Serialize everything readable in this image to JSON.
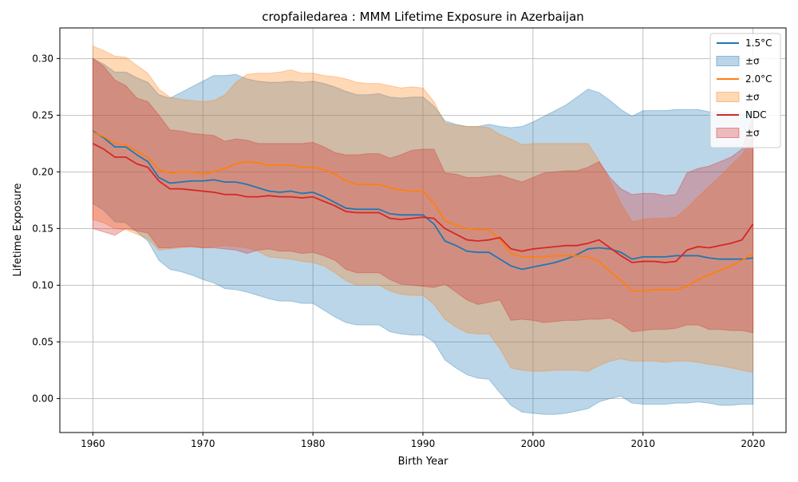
{
  "chart_data": {
    "type": "line",
    "title": "cropfailedarea : MMM Lifetime Exposure in Azerbaijan",
    "xlabel": "Birth Year",
    "ylabel": "Lifetime Exposure",
    "xlim": [
      1957,
      2023
    ],
    "ylim": [
      -0.03,
      0.327
    ],
    "xticks": [
      1960,
      1970,
      1980,
      1990,
      2000,
      2010,
      2020
    ],
    "xtick_labels": [
      "1960",
      "1970",
      "1980",
      "1990",
      "2000",
      "2010",
      "2020"
    ],
    "yticks": [
      0.0,
      0.05,
      0.1,
      0.15,
      0.2,
      0.25,
      0.3
    ],
    "ytick_labels": [
      "0.00",
      "0.05",
      "0.10",
      "0.15",
      "0.20",
      "0.25",
      "0.30"
    ],
    "grid": true,
    "legend_position": "top-right",
    "x": [
      1960,
      1961,
      1962,
      1963,
      1964,
      1965,
      1966,
      1967,
      1968,
      1969,
      1970,
      1971,
      1972,
      1973,
      1974,
      1975,
      1976,
      1977,
      1978,
      1979,
      1980,
      1981,
      1982,
      1983,
      1984,
      1985,
      1986,
      1987,
      1988,
      1989,
      1990,
      1991,
      1992,
      1993,
      1994,
      1995,
      1996,
      1997,
      1998,
      1999,
      2000,
      2001,
      2002,
      2003,
      2004,
      2005,
      2006,
      2007,
      2008,
      2009,
      2010,
      2011,
      2012,
      2013,
      2014,
      2015,
      2016,
      2017,
      2018,
      2019,
      2020
    ],
    "series": [
      {
        "name": "1.5°C",
        "band_label": "±σ",
        "color": "#1f77b4",
        "values": [
          0.236,
          0.23,
          0.222,
          0.222,
          0.215,
          0.209,
          0.195,
          0.19,
          0.191,
          0.192,
          0.192,
          0.193,
          0.191,
          0.191,
          0.189,
          0.186,
          0.183,
          0.182,
          0.183,
          0.181,
          0.182,
          0.178,
          0.173,
          0.168,
          0.167,
          0.167,
          0.167,
          0.163,
          0.162,
          0.162,
          0.162,
          0.154,
          0.139,
          0.135,
          0.13,
          0.129,
          0.129,
          0.123,
          0.117,
          0.114,
          0.116,
          0.118,
          0.12,
          0.123,
          0.127,
          0.132,
          0.133,
          0.132,
          0.129,
          0.123,
          0.125,
          0.125,
          0.125,
          0.126,
          0.126,
          0.126,
          0.124,
          0.123,
          0.123,
          0.123,
          0.124
        ],
        "upper": [
          0.3,
          0.295,
          0.288,
          0.288,
          0.283,
          0.279,
          0.268,
          0.265,
          0.27,
          0.275,
          0.28,
          0.285,
          0.285,
          0.286,
          0.282,
          0.28,
          0.279,
          0.279,
          0.28,
          0.279,
          0.28,
          0.278,
          0.275,
          0.271,
          0.268,
          0.268,
          0.269,
          0.266,
          0.265,
          0.266,
          0.266,
          0.258,
          0.245,
          0.242,
          0.24,
          0.24,
          0.242,
          0.24,
          0.239,
          0.24,
          0.244,
          0.249,
          0.254,
          0.259,
          0.266,
          0.273,
          0.27,
          0.263,
          0.255,
          0.249,
          0.254,
          0.254,
          0.254,
          0.255,
          0.255,
          0.255,
          0.253,
          0.253,
          0.252,
          0.251,
          0.252
        ],
        "lower": [
          0.172,
          0.166,
          0.156,
          0.155,
          0.147,
          0.139,
          0.122,
          0.114,
          0.112,
          0.109,
          0.105,
          0.102,
          0.097,
          0.096,
          0.094,
          0.091,
          0.088,
          0.086,
          0.086,
          0.084,
          0.084,
          0.078,
          0.072,
          0.067,
          0.065,
          0.065,
          0.065,
          0.059,
          0.057,
          0.056,
          0.056,
          0.05,
          0.034,
          0.027,
          0.021,
          0.018,
          0.017,
          0.005,
          -0.006,
          -0.012,
          -0.013,
          -0.014,
          -0.014,
          -0.013,
          -0.011,
          -0.009,
          -0.003,
          0.0,
          0.002,
          -0.004,
          -0.005,
          -0.005,
          -0.005,
          -0.004,
          -0.004,
          -0.003,
          -0.004,
          -0.006,
          -0.006,
          -0.005,
          -0.005
        ]
      },
      {
        "name": "2.0°C",
        "band_label": "±σ",
        "color": "#ff7f0e",
        "values": [
          0.235,
          0.231,
          0.225,
          0.224,
          0.218,
          0.213,
          0.202,
          0.199,
          0.2,
          0.2,
          0.198,
          0.2,
          0.203,
          0.207,
          0.209,
          0.208,
          0.206,
          0.206,
          0.206,
          0.204,
          0.204,
          0.202,
          0.198,
          0.192,
          0.189,
          0.189,
          0.189,
          0.186,
          0.184,
          0.183,
          0.183,
          0.172,
          0.157,
          0.153,
          0.15,
          0.149,
          0.149,
          0.14,
          0.128,
          0.125,
          0.125,
          0.125,
          0.126,
          0.126,
          0.126,
          0.125,
          0.121,
          0.112,
          0.104,
          0.095,
          0.095,
          0.096,
          0.096,
          0.096,
          0.099,
          0.105,
          0.109,
          0.113,
          0.117,
          0.122,
          0.128
        ],
        "upper": [
          0.311,
          0.307,
          0.302,
          0.301,
          0.294,
          0.287,
          0.273,
          0.266,
          0.264,
          0.263,
          0.262,
          0.263,
          0.268,
          0.279,
          0.286,
          0.287,
          0.287,
          0.288,
          0.29,
          0.287,
          0.287,
          0.285,
          0.284,
          0.282,
          0.279,
          0.278,
          0.278,
          0.276,
          0.274,
          0.275,
          0.274,
          0.262,
          0.243,
          0.241,
          0.24,
          0.24,
          0.239,
          0.233,
          0.229,
          0.224,
          0.225,
          0.225,
          0.225,
          0.225,
          0.225,
          0.225,
          0.21,
          0.192,
          0.172,
          0.156,
          0.158,
          0.159,
          0.159,
          0.16,
          0.168,
          0.178,
          0.187,
          0.196,
          0.206,
          0.215,
          0.23
        ],
        "lower": [
          0.158,
          0.155,
          0.15,
          0.149,
          0.145,
          0.141,
          0.131,
          0.132,
          0.133,
          0.134,
          0.133,
          0.134,
          0.135,
          0.134,
          0.133,
          0.13,
          0.125,
          0.124,
          0.123,
          0.121,
          0.12,
          0.117,
          0.111,
          0.104,
          0.1,
          0.1,
          0.1,
          0.095,
          0.092,
          0.091,
          0.091,
          0.083,
          0.07,
          0.063,
          0.058,
          0.057,
          0.057,
          0.044,
          0.027,
          0.025,
          0.024,
          0.024,
          0.025,
          0.025,
          0.025,
          0.024,
          0.029,
          0.033,
          0.035,
          0.033,
          0.033,
          0.033,
          0.032,
          0.033,
          0.033,
          0.032,
          0.03,
          0.029,
          0.027,
          0.025,
          0.023
        ]
      },
      {
        "name": "NDC",
        "band_label": "±σ",
        "color": "#d62728",
        "values": [
          0.225,
          0.22,
          0.213,
          0.213,
          0.207,
          0.204,
          0.192,
          0.185,
          0.185,
          0.184,
          0.183,
          0.182,
          0.18,
          0.18,
          0.178,
          0.178,
          0.179,
          0.178,
          0.178,
          0.177,
          0.178,
          0.174,
          0.17,
          0.165,
          0.164,
          0.164,
          0.164,
          0.159,
          0.158,
          0.159,
          0.16,
          0.159,
          0.15,
          0.145,
          0.14,
          0.139,
          0.14,
          0.142,
          0.132,
          0.13,
          0.132,
          0.133,
          0.134,
          0.135,
          0.135,
          0.137,
          0.14,
          0.133,
          0.126,
          0.12,
          0.121,
          0.121,
          0.12,
          0.121,
          0.131,
          0.134,
          0.133,
          0.135,
          0.137,
          0.14,
          0.154
        ],
        "upper": [
          0.3,
          0.293,
          0.281,
          0.276,
          0.265,
          0.262,
          0.25,
          0.237,
          0.236,
          0.234,
          0.233,
          0.232,
          0.227,
          0.229,
          0.228,
          0.225,
          0.225,
          0.225,
          0.225,
          0.225,
          0.226,
          0.222,
          0.217,
          0.215,
          0.215,
          0.216,
          0.216,
          0.212,
          0.215,
          0.219,
          0.22,
          0.22,
          0.199,
          0.198,
          0.195,
          0.195,
          0.196,
          0.197,
          0.194,
          0.191,
          0.195,
          0.199,
          0.2,
          0.201,
          0.201,
          0.204,
          0.209,
          0.195,
          0.185,
          0.18,
          0.181,
          0.181,
          0.179,
          0.18,
          0.199,
          0.203,
          0.205,
          0.209,
          0.213,
          0.22,
          0.25
        ],
        "lower": [
          0.15,
          0.147,
          0.144,
          0.15,
          0.148,
          0.146,
          0.133,
          0.133,
          0.134,
          0.134,
          0.133,
          0.133,
          0.132,
          0.131,
          0.128,
          0.131,
          0.132,
          0.13,
          0.13,
          0.128,
          0.129,
          0.126,
          0.122,
          0.114,
          0.111,
          0.111,
          0.111,
          0.105,
          0.101,
          0.1,
          0.099,
          0.098,
          0.101,
          0.094,
          0.087,
          0.083,
          0.085,
          0.087,
          0.069,
          0.07,
          0.069,
          0.067,
          0.068,
          0.069,
          0.069,
          0.07,
          0.07,
          0.071,
          0.066,
          0.059,
          0.06,
          0.061,
          0.061,
          0.062,
          0.065,
          0.065,
          0.061,
          0.061,
          0.06,
          0.06,
          0.058
        ]
      }
    ]
  }
}
